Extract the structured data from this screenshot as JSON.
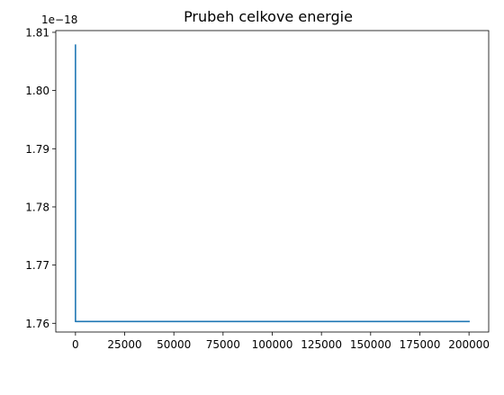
{
  "chart_data": {
    "type": "line",
    "title": "Prubeh celkove energie",
    "xlabel": "",
    "ylabel": "",
    "y_offset_text": "1e−18",
    "y_scale_factor": 1e-18,
    "xlim": [
      -10000,
      210000
    ],
    "ylim": [
      1.7585,
      1.8103
    ],
    "x_ticks": [
      0,
      25000,
      50000,
      75000,
      100000,
      125000,
      150000,
      175000,
      200000
    ],
    "x_tick_labels": [
      "0",
      "25000",
      "50000",
      "75000",
      "100000",
      "125000",
      "150000",
      "175000",
      "200000"
    ],
    "y_ticks": [
      1.76,
      1.77,
      1.78,
      1.79,
      1.8,
      1.81
    ],
    "y_tick_labels": [
      "1.76",
      "1.77",
      "1.78",
      "1.79",
      "1.80",
      "1.81"
    ],
    "grid": false,
    "legend": false,
    "series": [
      {
        "color": "#1f77b4",
        "x": [
          0,
          1,
          2,
          200000
        ],
        "y": [
          1.8078,
          1.7604,
          1.7603,
          1.7603
        ]
      }
    ]
  }
}
